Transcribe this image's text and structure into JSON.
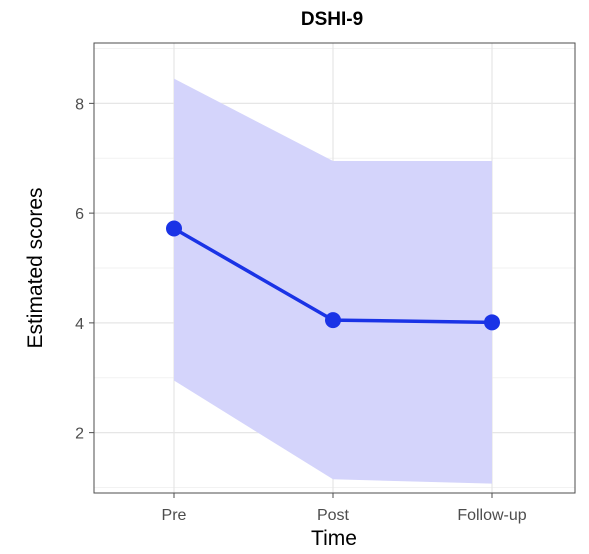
{
  "chart_data": {
    "type": "line",
    "title": "DSHI-9",
    "xlabel": "Time",
    "ylabel": "Estimated scores",
    "categories": [
      "Pre",
      "Post",
      "Follow-up"
    ],
    "series": [
      {
        "values": [
          5.72,
          4.05,
          4.01
        ],
        "lower": [
          2.95,
          1.15,
          1.07
        ],
        "upper": [
          8.45,
          6.95,
          6.95
        ]
      }
    ],
    "ylim": [
      0.9,
      9.1
    ],
    "yticks": [
      2,
      4,
      6,
      8
    ],
    "grid": true,
    "legend": "none",
    "colors": {
      "line": "#1a33e6",
      "ribbon": "#d4d4fb",
      "grid_major": "#e6e6e6",
      "grid_minor": "#f2f2f2",
      "border": "#4d4d4d",
      "background": "#ffffff"
    }
  }
}
